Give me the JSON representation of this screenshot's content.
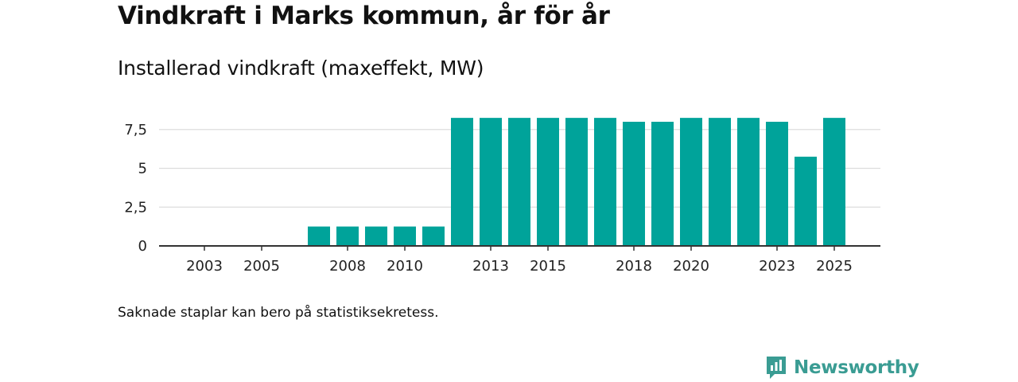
{
  "title": "Vindkraft i Marks kommun, år för år",
  "subtitle": "Installerad vindkraft (maxeffekt, MW)",
  "note": "Saknade staplar kan bero på statistiksekretess.",
  "brand": {
    "name": "Newsworthy",
    "color": "#3a9c93"
  },
  "colors": {
    "bar": "#00a39a",
    "grid": "#dddddd",
    "axis": "#333333"
  },
  "chart_data": {
    "type": "bar",
    "title": "Installerad vindkraft (maxeffekt, MW)",
    "xlabel": "",
    "ylabel": "",
    "ylim": [
      0,
      8.5
    ],
    "yticks": [
      0,
      2.5,
      5,
      7.5
    ],
    "ytick_labels": [
      "0",
      "2,5",
      "5",
      "7,5"
    ],
    "categories": [
      2003,
      2004,
      2005,
      2006,
      2007,
      2008,
      2009,
      2010,
      2011,
      2012,
      2013,
      2014,
      2015,
      2016,
      2017,
      2018,
      2019,
      2020,
      2021,
      2022,
      2023,
      2024,
      2025
    ],
    "values": [
      null,
      null,
      null,
      null,
      1.25,
      1.25,
      1.25,
      1.25,
      1.25,
      8.25,
      8.25,
      8.25,
      8.25,
      8.25,
      8.25,
      8.0,
      8.0,
      8.25,
      8.25,
      8.25,
      8.0,
      5.75,
      8.25
    ],
    "xtick_labels": [
      "2003",
      "2005",
      "2008",
      "2010",
      "2013",
      "2015",
      "2018",
      "2020",
      "2023",
      "2025"
    ],
    "grid": true,
    "legend": false
  }
}
